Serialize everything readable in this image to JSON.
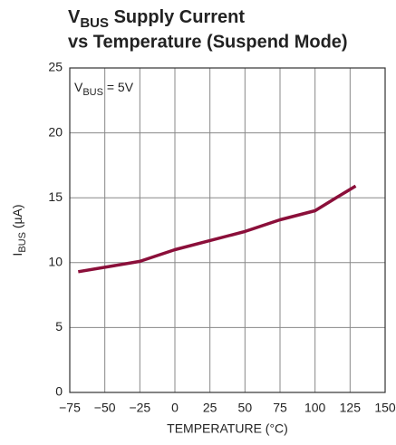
{
  "chart_data": {
    "type": "line",
    "title": {
      "symbol": "V",
      "subscript": "BUS",
      "rest": " Supply Current",
      "line2": "vs Temperature (Suspend Mode)"
    },
    "annotation": {
      "symbol": "V",
      "subscript": "BUS",
      "rest": " = 5V"
    },
    "y_label": {
      "symbol": "I",
      "subscript": "BUS",
      "rest": " (µA)"
    },
    "x_label": "TEMPERATURE (°C)",
    "x": [
      -69,
      -25,
      0,
      50,
      75,
      100,
      115,
      129
    ],
    "series": [
      {
        "name": "IBUS",
        "color": "#8b0f3a",
        "values": [
          9.3,
          10.1,
          11.0,
          12.4,
          13.3,
          14.0,
          15.0,
          15.9
        ]
      }
    ],
    "xlim": [
      -75,
      150
    ],
    "xticks": [
      {
        "value": -75,
        "label": "−75"
      },
      {
        "value": -50,
        "label": "−50"
      },
      {
        "value": -25,
        "label": "−25"
      },
      0,
      25,
      50,
      75,
      100,
      125,
      150
    ],
    "ylim": [
      0,
      25
    ],
    "yticks": [
      0,
      5,
      10,
      15,
      20,
      25
    ],
    "grid": true
  }
}
